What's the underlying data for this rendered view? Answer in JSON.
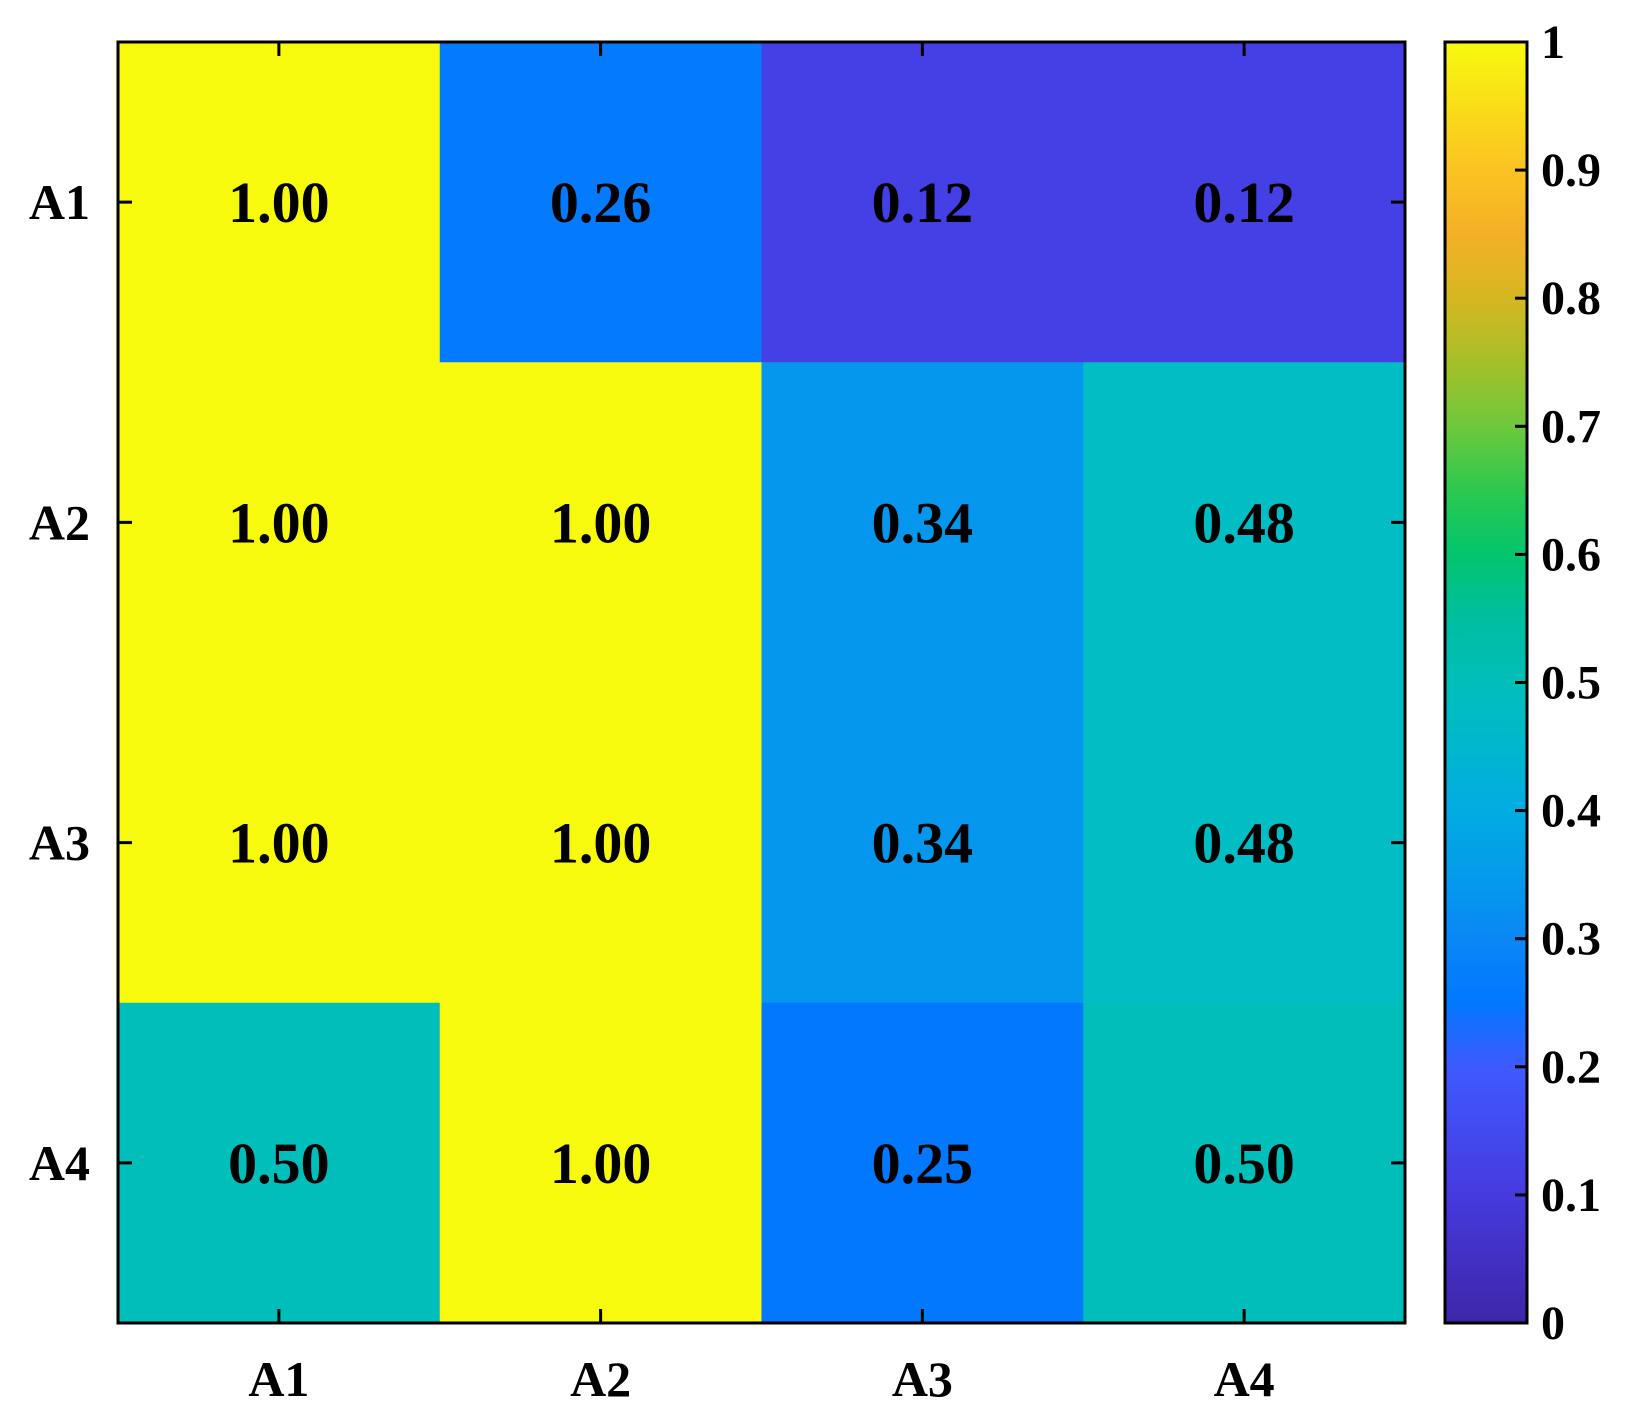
{
  "chart_data": {
    "type": "heatmap",
    "title": "",
    "xlabel": "",
    "ylabel": "",
    "x_categories": [
      "A1",
      "A2",
      "A3",
      "A4"
    ],
    "y_categories": [
      "A1",
      "A2",
      "A3",
      "A4"
    ],
    "values": [
      [
        1.0,
        0.26,
        0.12,
        0.12
      ],
      [
        1.0,
        1.0,
        0.34,
        0.48
      ],
      [
        1.0,
        1.0,
        0.34,
        0.48
      ],
      [
        0.5,
        1.0,
        0.25,
        0.5
      ]
    ],
    "cell_labels": [
      [
        "1.00",
        "0.26",
        "0.12",
        "0.12"
      ],
      [
        "1.00",
        "1.00",
        "0.34",
        "0.48"
      ],
      [
        "1.00",
        "1.00",
        "0.34",
        "0.48"
      ],
      [
        "0.50",
        "1.00",
        "0.25",
        "0.50"
      ]
    ],
    "colorbar": {
      "range": [
        0,
        1
      ],
      "ticks": [
        0,
        0.1,
        0.2,
        0.3,
        0.4,
        0.5,
        0.6,
        0.7,
        0.8,
        0.9,
        1
      ],
      "tick_labels": [
        "0",
        "0.1",
        "0.2",
        "0.3",
        "0.4",
        "0.5",
        "0.6",
        "0.7",
        "0.8",
        "0.9",
        "1"
      ],
      "placement": "right",
      "colormap": "parula"
    },
    "grid": false
  }
}
